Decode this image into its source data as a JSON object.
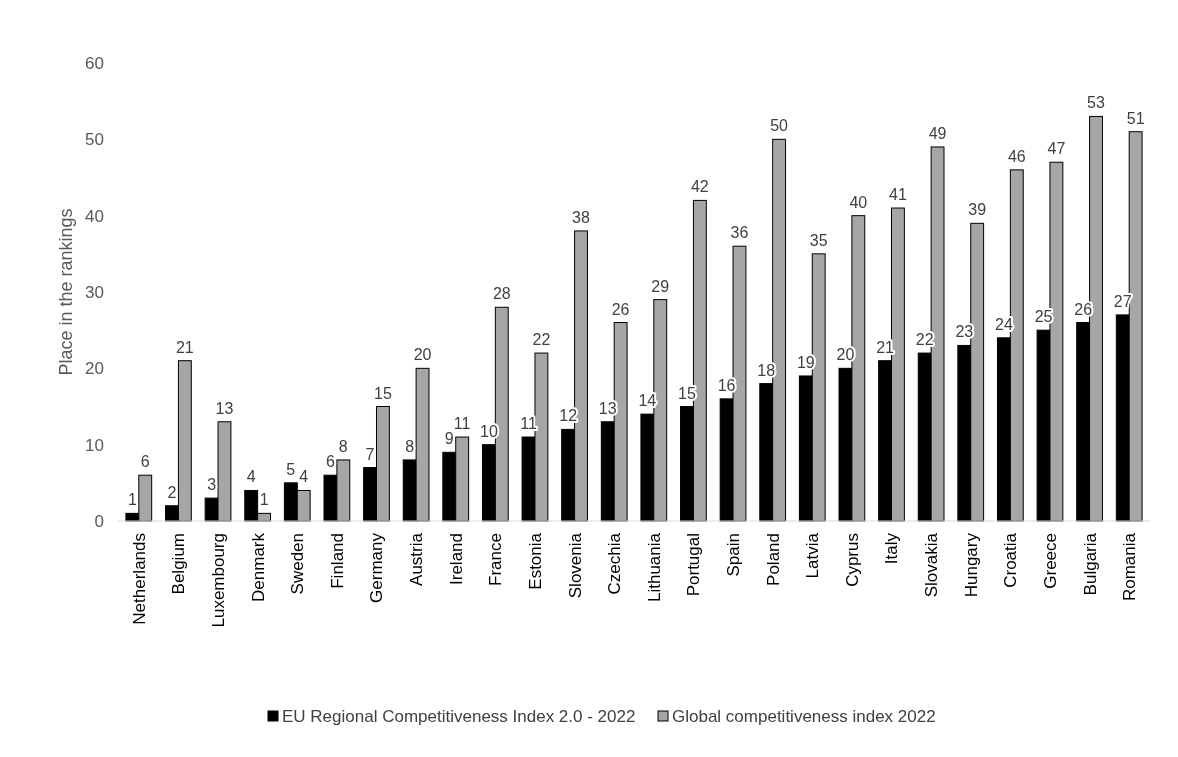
{
  "chart_data": {
    "type": "bar",
    "ylabel": "Place in the rankings",
    "categories": [
      "Netherlands",
      "Belgium",
      "Luxembourg",
      "Denmark",
      "Sweden",
      "Finland",
      "Germany",
      "Austria",
      "Ireland",
      "France",
      "Estonia",
      "Slovenia",
      "Czechia",
      "Lithuania",
      "Portugal",
      "Spain",
      "Poland",
      "Latvia",
      "Cyprus",
      "Italy",
      "Slovakia",
      "Hungary",
      "Croatia",
      "Greece",
      "Bulgaria",
      "Romania"
    ],
    "series": [
      {
        "name": "EU Regional Competitiveness Index 2.0 - 2022",
        "color": "#000000",
        "values": [
          1,
          2,
          3,
          4,
          5,
          6,
          7,
          8,
          9,
          10,
          11,
          12,
          13,
          14,
          15,
          16,
          18,
          19,
          20,
          21,
          22,
          23,
          24,
          25,
          26,
          27
        ]
      },
      {
        "name": "Global competitiveness index 2022",
        "color": "#a6a6a6",
        "values": [
          6,
          21,
          13,
          1,
          4,
          8,
          15,
          20,
          11,
          28,
          22,
          38,
          26,
          29,
          42,
          36,
          50,
          35,
          40,
          41,
          49,
          39,
          46,
          47,
          53,
          51
        ]
      }
    ],
    "ylim": [
      0,
      60
    ],
    "yticks": [
      0,
      10,
      20,
      30,
      40,
      50,
      60
    ],
    "grid": false,
    "legend": "bottom",
    "data_labels": true
  }
}
